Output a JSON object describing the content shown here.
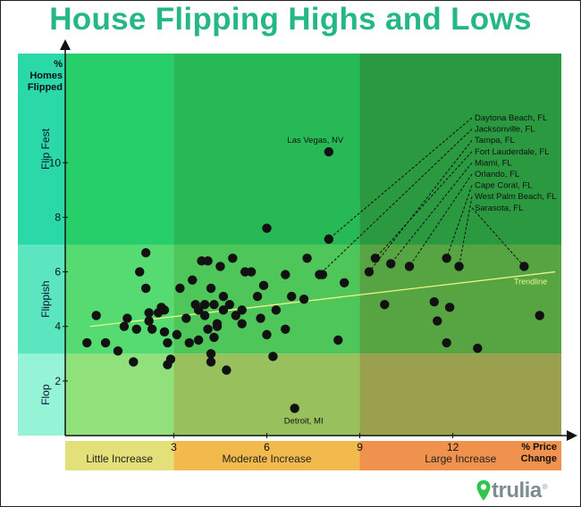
{
  "title": "House Flipping Highs and Lows",
  "logo": {
    "text": "trulia",
    "icon": "map-pin-icon",
    "mark": "®"
  },
  "colors": {
    "title": "#25b784",
    "zones": {
      "flipfest": [
        "#27cf6b",
        "#27b955",
        "#2a9940"
      ],
      "flippish": [
        "#55db72",
        "#4ec65a",
        "#57a443"
      ],
      "flop": [
        "#90e07b",
        "#98c15d",
        "#9aa04e"
      ],
      "ybands": [
        "#2ad8a8",
        "#5be6bf",
        "#95f3d6"
      ],
      "xbands": [
        "#e3e07a",
        "#f2b94d",
        "#f0924d"
      ]
    },
    "trend": "#eef58a",
    "point": "#111111"
  },
  "chart_data": {
    "type": "scatter",
    "title": "House Flipping Highs and Lows",
    "xlabel": "% Price Change",
    "ylabel": "% Homes Flipped",
    "xlim": [
      -0.5,
      15.5
    ],
    "ylim": [
      0,
      14
    ],
    "xticks": [
      3,
      6,
      9,
      12
    ],
    "yticks": [
      2,
      4,
      6,
      8,
      10
    ],
    "y_zones": [
      {
        "label": "Flop",
        "range": [
          0,
          3
        ]
      },
      {
        "label": "Flippish",
        "range": [
          3,
          7
        ]
      },
      {
        "label": "Flip Fest",
        "range": [
          7,
          14
        ]
      }
    ],
    "x_zones": [
      {
        "label": "Little Increase",
        "range": [
          -0.5,
          3
        ]
      },
      {
        "label": "Moderate Increase",
        "range": [
          3,
          9
        ]
      },
      {
        "label": "Large Increase",
        "range": [
          9,
          15.5
        ]
      }
    ],
    "trendline": {
      "label": "Trendline",
      "start": [
        0.3,
        4.0
      ],
      "end": [
        15.3,
        6.0
      ]
    },
    "annotations": [
      {
        "text": "Las Vegas, NV",
        "point": [
          8.0,
          10.4
        ]
      },
      {
        "text": "Detroit, MI",
        "point": [
          6.9,
          1.0
        ]
      }
    ],
    "callouts": [
      {
        "text": "Daytona Beach, FL",
        "point": [
          8.0,
          7.2
        ]
      },
      {
        "text": "Jacksonville, FL",
        "point": [
          7.7,
          5.9
        ]
      },
      {
        "text": "Tampa, FL",
        "point": [
          9.3,
          6.0
        ]
      },
      {
        "text": "Fort Lauderdale, FL",
        "point": [
          9.5,
          6.5
        ]
      },
      {
        "text": "Miami, FL",
        "point": [
          10.0,
          6.3
        ]
      },
      {
        "text": "Orlando, FL",
        "point": [
          10.6,
          6.2
        ]
      },
      {
        "text": "Cape Coral, FL",
        "point": [
          11.8,
          6.5
        ]
      },
      {
        "text": "West Palm Beach, FL",
        "point": [
          12.2,
          6.2
        ]
      },
      {
        "text": "Sarasota, FL",
        "point": [
          14.3,
          6.2
        ]
      }
    ],
    "points": [
      [
        0.2,
        3.4
      ],
      [
        0.5,
        4.4
      ],
      [
        0.8,
        3.4
      ],
      [
        1.2,
        3.1
      ],
      [
        1.4,
        4.0
      ],
      [
        1.5,
        4.3
      ],
      [
        1.7,
        2.7
      ],
      [
        1.8,
        3.9
      ],
      [
        1.9,
        6.0
      ],
      [
        2.1,
        6.7
      ],
      [
        2.1,
        5.4
      ],
      [
        2.2,
        4.5
      ],
      [
        2.2,
        4.2
      ],
      [
        2.3,
        3.9
      ],
      [
        2.5,
        4.5
      ],
      [
        2.6,
        4.7
      ],
      [
        2.7,
        4.6
      ],
      [
        2.7,
        3.8
      ],
      [
        2.8,
        3.4
      ],
      [
        2.8,
        2.6
      ],
      [
        2.9,
        2.8
      ],
      [
        3.1,
        3.7
      ],
      [
        3.2,
        5.4
      ],
      [
        3.4,
        4.3
      ],
      [
        3.5,
        3.4
      ],
      [
        3.6,
        5.7
      ],
      [
        3.7,
        4.8
      ],
      [
        3.8,
        3.5
      ],
      [
        3.8,
        4.6
      ],
      [
        3.9,
        6.4
      ],
      [
        4.0,
        4.8
      ],
      [
        4.0,
        4.4
      ],
      [
        4.1,
        3.9
      ],
      [
        4.1,
        6.4
      ],
      [
        4.2,
        5.4
      ],
      [
        4.2,
        3.0
      ],
      [
        4.2,
        2.7
      ],
      [
        4.3,
        4.8
      ],
      [
        4.3,
        3.6
      ],
      [
        4.4,
        4.1
      ],
      [
        4.4,
        4.0
      ],
      [
        4.5,
        6.2
      ],
      [
        4.6,
        4.6
      ],
      [
        4.6,
        5.1
      ],
      [
        4.7,
        2.4
      ],
      [
        4.8,
        4.8
      ],
      [
        4.9,
        6.5
      ],
      [
        5.0,
        4.4
      ],
      [
        5.2,
        4.6
      ],
      [
        5.2,
        4.1
      ],
      [
        5.3,
        6.0
      ],
      [
        5.5,
        6.0
      ],
      [
        5.7,
        5.1
      ],
      [
        5.8,
        4.3
      ],
      [
        5.9,
        5.5
      ],
      [
        6.0,
        7.6
      ],
      [
        6.0,
        3.7
      ],
      [
        6.2,
        2.9
      ],
      [
        6.3,
        4.6
      ],
      [
        6.6,
        5.9
      ],
      [
        6.6,
        3.9
      ],
      [
        6.8,
        5.1
      ],
      [
        7.2,
        5.0
      ],
      [
        7.3,
        6.5
      ],
      [
        7.8,
        5.9
      ],
      [
        8.3,
        3.5
      ],
      [
        8.5,
        5.6
      ],
      [
        9.8,
        4.8
      ],
      [
        11.4,
        4.9
      ],
      [
        11.5,
        4.2
      ],
      [
        11.8,
        3.4
      ],
      [
        11.9,
        4.7
      ],
      [
        12.8,
        3.2
      ],
      [
        14.8,
        4.4
      ],
      [
        8.0,
        10.4
      ],
      [
        6.9,
        1.0
      ],
      [
        8.0,
        7.2
      ],
      [
        7.7,
        5.9
      ],
      [
        9.3,
        6.0
      ],
      [
        9.5,
        6.5
      ],
      [
        10.0,
        6.3
      ],
      [
        10.6,
        6.2
      ],
      [
        11.8,
        6.5
      ],
      [
        12.2,
        6.2
      ],
      [
        14.3,
        6.2
      ]
    ]
  }
}
